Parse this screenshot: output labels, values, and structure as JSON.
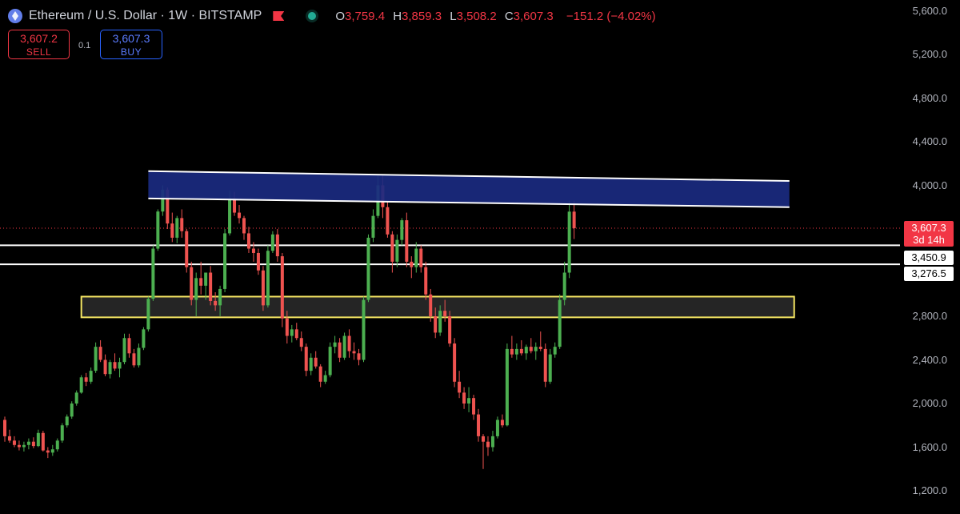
{
  "header": {
    "title": "Ethereum / U.S. Dollar · 1W · BITSTAMP",
    "open_key": "O",
    "open": "3,759.4",
    "high_key": "H",
    "high": "3,859.3",
    "low_key": "L",
    "low": "3,508.2",
    "close_key": "C",
    "close": "3,607.3",
    "change": "−151.2 (−4.02%)"
  },
  "trade": {
    "sell_price": "3,607.2",
    "sell_label": "SELL",
    "spread": "0.1",
    "buy_price": "3,607.3",
    "buy_label": "BUY"
  },
  "price_tag": {
    "price": "3,607.3",
    "countdown": "3d 14h"
  },
  "level_tags": [
    "3,450.9",
    "3,276.5"
  ],
  "colors": {
    "up": "#4caf50",
    "down": "#ef5350",
    "resistance": "#1a2a80",
    "support_border": "#f5e663"
  },
  "chart_data": {
    "type": "candlestick",
    "y_axis": {
      "ticks": [
        "5,600.0",
        "5,200.0",
        "4,800.0",
        "4,400.0",
        "4,000.0",
        "2,800.0",
        "2,400.0",
        "2,000.0",
        "1,600.0",
        "1,200.0"
      ],
      "range": [
        1050,
        5650
      ]
    },
    "horizontal_levels": [
      3450.9,
      3276.5
    ],
    "last_price": 3607.3,
    "zones": [
      {
        "name": "resistance",
        "x_start": 30,
        "x_end": 164,
        "top_start": 4130,
        "bottom_start": 3880,
        "top_end": 4040,
        "bottom_end": 3800
      },
      {
        "name": "support",
        "x_start": 16,
        "x_end": 165,
        "top": 2980,
        "bottom": 2790
      }
    ],
    "candles": [
      [
        1850,
        1880,
        1650,
        1700
      ],
      [
        1700,
        1760,
        1640,
        1660
      ],
      [
        1660,
        1700,
        1600,
        1620
      ],
      [
        1620,
        1660,
        1570,
        1600
      ],
      [
        1600,
        1650,
        1560,
        1620
      ],
      [
        1620,
        1680,
        1580,
        1650
      ],
      [
        1650,
        1690,
        1590,
        1610
      ],
      [
        1610,
        1760,
        1600,
        1730
      ],
      [
        1730,
        1750,
        1560,
        1570
      ],
      [
        1570,
        1600,
        1500,
        1550
      ],
      [
        1550,
        1620,
        1520,
        1580
      ],
      [
        1580,
        1680,
        1560,
        1660
      ],
      [
        1660,
        1820,
        1640,
        1800
      ],
      [
        1800,
        1900,
        1780,
        1880
      ],
      [
        1880,
        2020,
        1860,
        2000
      ],
      [
        2000,
        2120,
        1980,
        2100
      ],
      [
        2100,
        2260,
        2090,
        2240
      ],
      [
        2240,
        2280,
        2160,
        2200
      ],
      [
        2200,
        2330,
        2180,
        2300
      ],
      [
        2300,
        2560,
        2280,
        2520
      ],
      [
        2520,
        2580,
        2380,
        2400
      ],
      [
        2400,
        2450,
        2250,
        2270
      ],
      [
        2270,
        2400,
        2230,
        2380
      ],
      [
        2380,
        2460,
        2300,
        2320
      ],
      [
        2320,
        2420,
        2240,
        2380
      ],
      [
        2380,
        2640,
        2360,
        2600
      ],
      [
        2600,
        2640,
        2420,
        2460
      ],
      [
        2460,
        2500,
        2330,
        2350
      ],
      [
        2350,
        2550,
        2330,
        2510
      ],
      [
        2510,
        2700,
        2490,
        2680
      ],
      [
        2680,
        2980,
        2660,
        2960
      ],
      [
        2960,
        3450,
        2940,
        3420
      ],
      [
        3420,
        3780,
        3400,
        3760
      ],
      [
        3760,
        4000,
        3720,
        3960
      ],
      [
        3960,
        3980,
        3600,
        3650
      ],
      [
        3650,
        3750,
        3480,
        3520
      ],
      [
        3520,
        3720,
        3470,
        3700
      ],
      [
        3700,
        3780,
        3520,
        3580
      ],
      [
        3580,
        3600,
        3200,
        3250
      ],
      [
        3250,
        3300,
        2900,
        2950
      ],
      [
        2950,
        3200,
        2800,
        3150
      ],
      [
        3150,
        3300,
        3000,
        3080
      ],
      [
        3080,
        3200,
        2950,
        3200
      ],
      [
        3200,
        3260,
        2900,
        2940
      ],
      [
        2940,
        3020,
        2850,
        2900
      ],
      [
        2900,
        3080,
        2800,
        3050
      ],
      [
        3050,
        3600,
        3020,
        3560
      ],
      [
        3560,
        3950,
        3540,
        3880
      ],
      [
        3880,
        3940,
        3720,
        3750
      ],
      [
        3750,
        3820,
        3650,
        3700
      ],
      [
        3700,
        3720,
        3500,
        3560
      ],
      [
        3560,
        3620,
        3380,
        3420
      ],
      [
        3420,
        3480,
        3300,
        3380
      ],
      [
        3380,
        3420,
        3180,
        3220
      ],
      [
        3220,
        3260,
        2850,
        2900
      ],
      [
        2900,
        3450,
        2880,
        3400
      ],
      [
        3400,
        3580,
        3380,
        3550
      ],
      [
        3550,
        3600,
        3300,
        3350
      ],
      [
        3350,
        3380,
        2700,
        2780
      ],
      [
        2780,
        2850,
        2550,
        2620
      ],
      [
        2620,
        2720,
        2560,
        2680
      ],
      [
        2680,
        2740,
        2580,
        2600
      ],
      [
        2600,
        2660,
        2480,
        2520
      ],
      [
        2520,
        2550,
        2250,
        2300
      ],
      [
        2300,
        2460,
        2260,
        2420
      ],
      [
        2420,
        2480,
        2320,
        2340
      ],
      [
        2340,
        2360,
        2150,
        2200
      ],
      [
        2200,
        2300,
        2180,
        2260
      ],
      [
        2260,
        2560,
        2240,
        2520
      ],
      [
        2520,
        2620,
        2460,
        2560
      ],
      [
        2560,
        2600,
        2380,
        2420
      ],
      [
        2420,
        2650,
        2400,
        2620
      ],
      [
        2620,
        2680,
        2420,
        2480
      ],
      [
        2480,
        2560,
        2400,
        2460
      ],
      [
        2460,
        2500,
        2350,
        2400
      ],
      [
        2400,
        2980,
        2380,
        2950
      ],
      [
        2950,
        3550,
        2930,
        3520
      ],
      [
        3520,
        3780,
        3480,
        3720
      ],
      [
        3720,
        4100,
        3700,
        4000
      ],
      [
        4000,
        4100,
        3700,
        3800
      ],
      [
        3800,
        3850,
        3520,
        3550
      ],
      [
        3550,
        3580,
        3200,
        3300
      ],
      [
        3300,
        3550,
        3250,
        3500
      ],
      [
        3500,
        3700,
        3450,
        3680
      ],
      [
        3680,
        3750,
        3250,
        3300
      ],
      [
        3300,
        3350,
        3150,
        3250
      ],
      [
        3250,
        3480,
        3200,
        3420
      ],
      [
        3420,
        3450,
        3200,
        3250
      ],
      [
        3250,
        3300,
        2950,
        3000
      ],
      [
        3000,
        3050,
        2750,
        2800
      ],
      [
        2800,
        2880,
        2600,
        2650
      ],
      [
        2650,
        2900,
        2620,
        2850
      ],
      [
        2850,
        2950,
        2750,
        2800
      ],
      [
        2800,
        2850,
        2520,
        2550
      ],
      [
        2550,
        2600,
        2150,
        2200
      ],
      [
        2200,
        2300,
        2050,
        2100
      ],
      [
        2100,
        2150,
        1950,
        2000
      ],
      [
        2000,
        2150,
        1920,
        2050
      ],
      [
        2050,
        2080,
        1850,
        1900
      ],
      [
        1900,
        1950,
        1650,
        1700
      ],
      [
        1700,
        1720,
        1400,
        1650
      ],
      [
        1650,
        1700,
        1520,
        1600
      ],
      [
        1600,
        1750,
        1560,
        1700
      ],
      [
        1700,
        1880,
        1680,
        1850
      ],
      [
        1850,
        1900,
        1780,
        1800
      ],
      [
        1800,
        2550,
        1790,
        2500
      ],
      [
        2500,
        2620,
        2420,
        2450
      ],
      [
        2450,
        2550,
        2400,
        2500
      ],
      [
        2500,
        2580,
        2440,
        2460
      ],
      [
        2460,
        2540,
        2400,
        2520
      ],
      [
        2520,
        2600,
        2460,
        2480
      ],
      [
        2480,
        2560,
        2400,
        2520
      ],
      [
        2520,
        2660,
        2480,
        2500
      ],
      [
        2500,
        2550,
        2150,
        2200
      ],
      [
        2200,
        2500,
        2180,
        2450
      ],
      [
        2450,
        2560,
        2420,
        2520
      ],
      [
        2520,
        3000,
        2500,
        2950
      ],
      [
        2950,
        3300,
        2900,
        3200
      ],
      [
        3200,
        3859,
        3150,
        3759
      ],
      [
        3759,
        3859,
        3508,
        3607
      ]
    ]
  }
}
